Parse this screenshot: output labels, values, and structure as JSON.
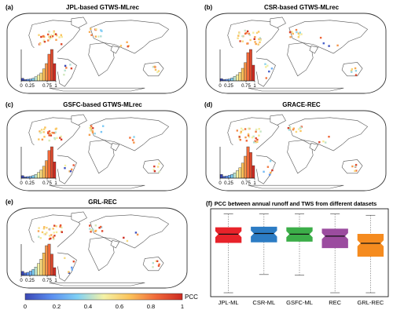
{
  "colors": {
    "land": "#ffffff",
    "coast": "#555555",
    "frame": "#333333",
    "hist_edge": "#333333",
    "median": "#111111",
    "whisker": "#777777"
  },
  "panels": [
    {
      "letter": "(a)",
      "title": "JPL-based GTWS-MLrec",
      "hist": [
        0.08,
        0.04,
        0.05,
        0.06,
        0.08,
        0.13,
        0.18,
        0.25,
        0.38,
        0.55,
        0.85,
        1.0,
        0.55
      ]
    },
    {
      "letter": "(b)",
      "title": "CSR-based GTWS-MLrec",
      "hist": [
        0.07,
        0.04,
        0.05,
        0.06,
        0.09,
        0.14,
        0.19,
        0.27,
        0.4,
        0.58,
        0.9,
        1.0,
        0.5
      ]
    },
    {
      "letter": "(c)",
      "title": "GSFC-based GTWS-MLrec",
      "hist": [
        0.08,
        0.04,
        0.05,
        0.06,
        0.08,
        0.12,
        0.18,
        0.26,
        0.38,
        0.56,
        0.88,
        1.0,
        0.52
      ]
    },
    {
      "letter": "(d)",
      "title": "GRACE-REC",
      "hist": [
        0.12,
        0.06,
        0.07,
        0.09,
        0.12,
        0.17,
        0.24,
        0.33,
        0.48,
        0.7,
        1.0,
        0.82,
        0.4
      ]
    },
    {
      "letter": "(e)",
      "title": "GRL-REC",
      "hist": [
        0.13,
        0.08,
        0.1,
        0.14,
        0.19,
        0.27,
        0.38,
        0.52,
        0.72,
        0.95,
        1.0,
        0.68,
        0.25
      ]
    }
  ],
  "hist_ticks": [
    "0",
    "0.25",
    "0.75",
    "1"
  ],
  "colorbar": {
    "label": "PCC",
    "ticks": [
      "0",
      "0.2",
      "0.4",
      "0.6",
      "0.8",
      "1"
    ],
    "stops": [
      "#3b47b5",
      "#5b8ef0",
      "#7fd0f5",
      "#f4f2a6",
      "#fbc25a",
      "#f0693a",
      "#cc2a22"
    ]
  },
  "chart_data": {
    "type": "boxplot",
    "letter": "(f)",
    "title": "PCC between annual runoff and TWS from different datasets",
    "categories": [
      "JPL-ML",
      "CSR-ML",
      "GSFC-ML",
      "REC",
      "GRL-REC"
    ],
    "series": [
      {
        "color": "#e8232a",
        "whisker_low": -0.24,
        "q1": 0.53,
        "median": 0.66,
        "q3": 0.76,
        "whisker_high": 0.97
      },
      {
        "color": "#2c7cc4",
        "whisker_low": 0.04,
        "q1": 0.54,
        "median": 0.67,
        "q3": 0.77,
        "whisker_high": 0.97
      },
      {
        "color": "#3cae49",
        "whisker_low": 0.03,
        "q1": 0.55,
        "median": 0.66,
        "q3": 0.76,
        "whisker_high": 0.97
      },
      {
        "color": "#9b4c9f",
        "whisker_low": -0.24,
        "q1": 0.45,
        "median": 0.63,
        "q3": 0.74,
        "whisker_high": 0.97
      },
      {
        "color": "#f58b1f",
        "whisker_low": -0.24,
        "q1": 0.32,
        "median": 0.52,
        "q3": 0.66,
        "whisker_high": 0.95
      }
    ],
    "ylim": [
      -0.3,
      1.05
    ],
    "grid": false
  }
}
